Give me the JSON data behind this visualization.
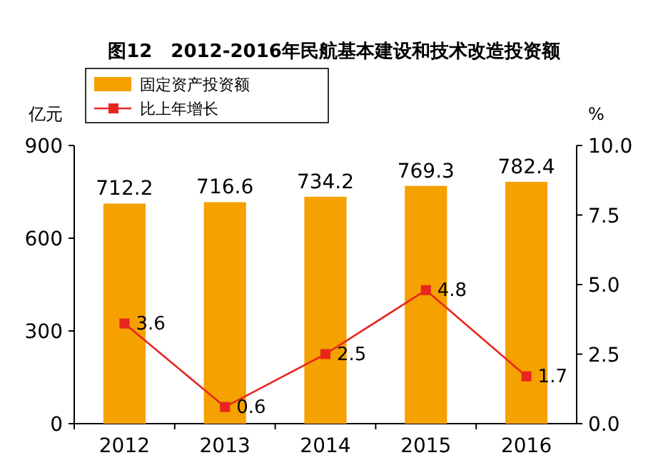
{
  "chart_data": {
    "type": "bar",
    "title": "图12　2012-2016年民航基本建设和技术改造投资额",
    "categories": [
      "2012",
      "2013",
      "2014",
      "2015",
      "2016"
    ],
    "ylabel": "亿元",
    "y2label": "%",
    "ylim": [
      0,
      900
    ],
    "yticks": [
      0,
      300,
      600,
      900
    ],
    "y2lim": [
      0,
      10
    ],
    "y2ticks": [
      {
        "value": 0,
        "label": "0.0"
      },
      2.5,
      {
        "value": 5,
        "label": "5.0"
      },
      7.5,
      {
        "value": 10,
        "label": "10.0"
      }
    ],
    "series": [
      {
        "name": "固定资产投资额",
        "color": "#f5a100",
        "values": [
          712.2,
          716.6,
          734.2,
          769.3,
          782.4
        ]
      },
      {
        "name": "比上年增长",
        "type": "line",
        "axis": "y2",
        "color": "#e8251f",
        "marker": "square",
        "values": [
          3.6,
          0.6,
          2.5,
          4.8,
          1.7
        ]
      }
    ],
    "legend": "top left",
    "data_labels": true,
    "grid": false
  }
}
